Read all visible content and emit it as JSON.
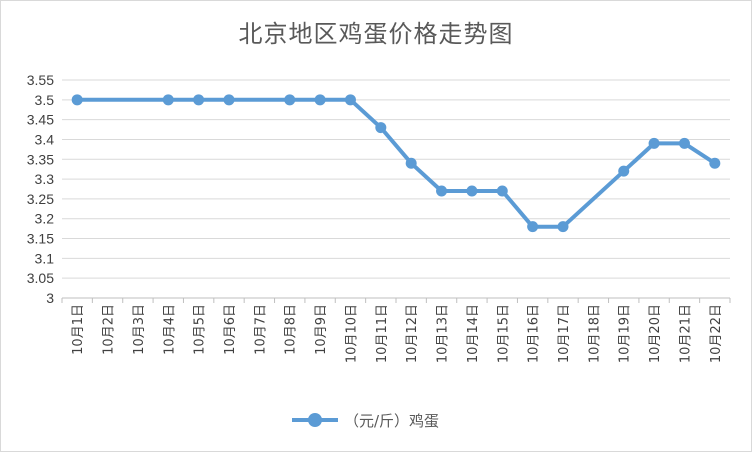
{
  "chart_data": {
    "type": "line",
    "title": "北京地区鸡蛋价格走势图",
    "categories": [
      "10月1日",
      "10月2日",
      "10月3日",
      "10月4日",
      "10月5日",
      "10月6日",
      "10月7日",
      "10月8日",
      "10月9日",
      "10月10日",
      "10月11日",
      "10月12日",
      "10月13日",
      "10月14日",
      "10月15日",
      "10月16日",
      "10月17日",
      "10月18日",
      "10月19日",
      "10月20日",
      "10月21日",
      "10月22日"
    ],
    "series": [
      {
        "name": "（元/斤）鸡蛋",
        "values": [
          3.5,
          null,
          null,
          3.5,
          3.5,
          3.5,
          null,
          3.5,
          3.5,
          3.5,
          3.43,
          3.34,
          3.27,
          3.27,
          3.27,
          3.18,
          3.18,
          null,
          3.32,
          3.39,
          3.39,
          3.34
        ],
        "color": "#5b9bd5"
      }
    ],
    "ylim": [
      3,
      3.55
    ],
    "yticks": [
      "3",
      "3.05",
      "3.1",
      "3.15",
      "3.2",
      "3.25",
      "3.3",
      "3.35",
      "3.4",
      "3.45",
      "3.5",
      "3.55"
    ],
    "grid": true,
    "legend_position": "bottom",
    "gridline_color": "#d9d9d9",
    "axis_color": "#bfbfbf"
  }
}
